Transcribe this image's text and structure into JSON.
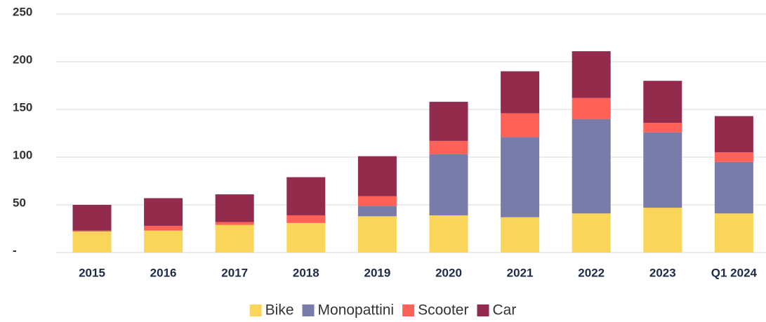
{
  "chart_data": {
    "type": "stacked_bar",
    "categories": [
      "2015",
      "2016",
      "2017",
      "2018",
      "2019",
      "2020",
      "2021",
      "2022",
      "2023",
      "Q1 2024"
    ],
    "series": [
      {
        "name": "Bike",
        "color": "#f9d55a",
        "values": [
          22,
          23,
          29,
          31,
          38,
          39,
          37,
          41,
          47,
          41
        ]
      },
      {
        "name": "Monopattini",
        "color": "#797ba8",
        "values": [
          0,
          0,
          0,
          0,
          11,
          64,
          84,
          99,
          79,
          54
        ]
      },
      {
        "name": "Scooter",
        "color": "#fe6157",
        "values": [
          1,
          5,
          3,
          8,
          10,
          14,
          25,
          22,
          10,
          10
        ]
      },
      {
        "name": "Car",
        "color": "#922b4c",
        "values": [
          27,
          29,
          29,
          40,
          42,
          41,
          44,
          49,
          44,
          38
        ]
      }
    ],
    "ylim": [
      0,
      250
    ],
    "yticks": [
      {
        "value": 0,
        "label": "-"
      },
      50,
      100,
      150,
      200,
      250
    ],
    "grid": true
  }
}
